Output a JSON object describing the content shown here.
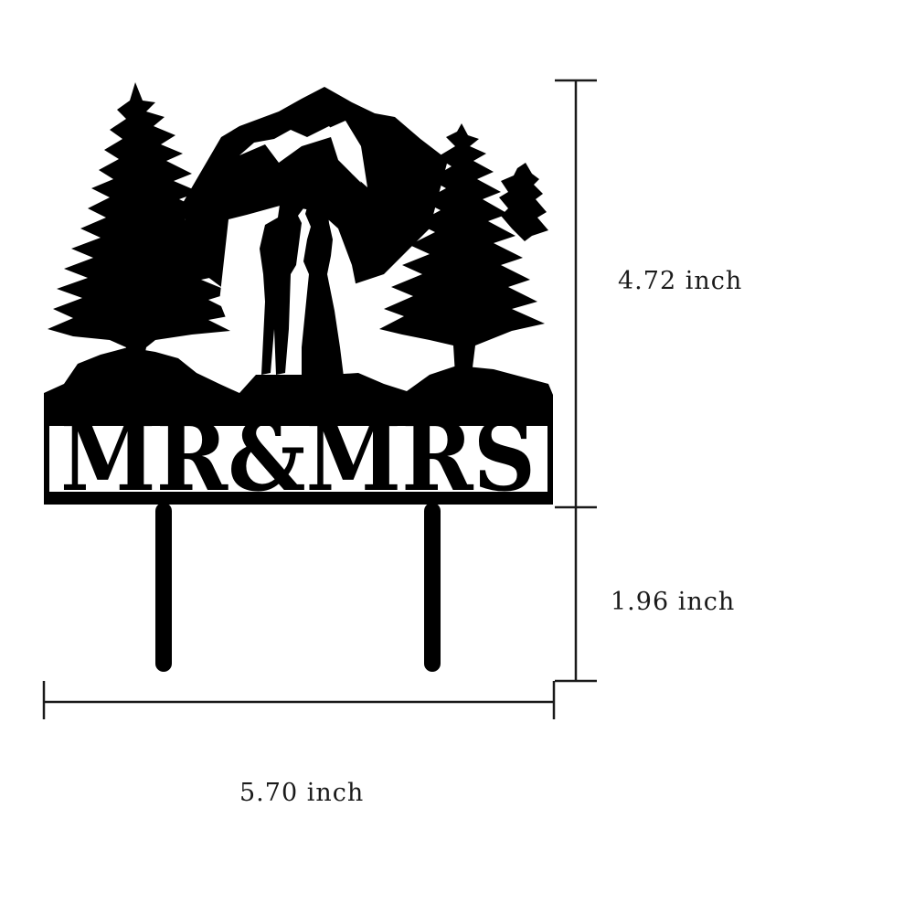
{
  "product": {
    "text": "MR&MRS",
    "color": "#000000"
  },
  "dimensions": {
    "height_top": "4.72 inch",
    "height_stake": "1.96 inch",
    "width": "5.70 inch",
    "line_color": "#1a1a1a"
  },
  "icons": [
    "pine-tree-icon",
    "mountain-icon",
    "couple-silhouette-icon"
  ]
}
